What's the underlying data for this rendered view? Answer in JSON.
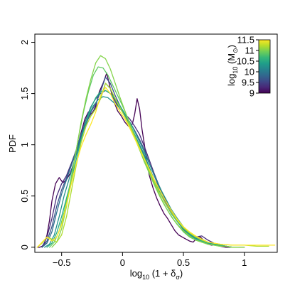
{
  "chart_data": {
    "type": "line",
    "xlabel": {
      "pre": "log",
      "sub": "10",
      "post": " (1 + δ",
      "sub2": "σ",
      "close": ")"
    },
    "ylabel": "PDF",
    "xlim": [
      -0.72,
      1.27
    ],
    "ylim": [
      -0.05,
      2.08
    ],
    "xticks": [
      -0.5,
      0,
      0.5,
      1
    ],
    "xtick_labels": [
      "−0.5",
      "0",
      "0.5",
      "1"
    ],
    "yticks": [
      0,
      0.5,
      1,
      1.5,
      2
    ],
    "ytick_labels": [
      "0",
      "0.5",
      "1",
      "1.5",
      "2"
    ],
    "colorbar": {
      "label": {
        "pre": "log",
        "sub": "10",
        "post": " (M",
        "sub2": "⊙",
        "close": ")"
      },
      "range": [
        9,
        11.5
      ],
      "ticks": [
        9,
        9.5,
        10,
        10.5,
        11,
        11.5
      ],
      "tick_labels": [
        "9",
        "9.5",
        "10",
        "10.5",
        "11",
        "11.5"
      ],
      "colormap": [
        "#440154",
        "#482878",
        "#3e4989",
        "#31688e",
        "#26828e",
        "#1f9e89",
        "#35b779",
        "#6ece58",
        "#b5de2b",
        "#fde725"
      ]
    },
    "series": [
      {
        "mass": 9.0,
        "color": "#440154",
        "x": [
          -0.7,
          -0.68,
          -0.66,
          -0.64,
          -0.62,
          -0.6,
          -0.58,
          -0.55,
          -0.52,
          -0.49,
          -0.46,
          -0.43,
          -0.4,
          -0.37,
          -0.34,
          -0.31,
          -0.28,
          -0.25,
          -0.22,
          -0.19,
          -0.16,
          -0.13,
          -0.1,
          -0.07,
          -0.04,
          -0.01,
          0.02,
          0.05,
          0.08,
          0.1,
          0.12,
          0.14,
          0.16,
          0.18,
          0.2,
          0.22,
          0.25,
          0.28,
          0.31,
          0.34,
          0.37,
          0.4,
          0.43,
          0.46,
          0.49,
          0.52,
          0.55,
          0.58,
          0.61,
          0.64,
          0.67,
          0.7,
          0.73,
          0.76,
          0.8,
          0.85,
          0.9,
          0.95,
          1.0
        ],
        "y": [
          0.0,
          0.0,
          0.01,
          0.04,
          0.12,
          0.26,
          0.45,
          0.62,
          0.68,
          0.63,
          0.66,
          0.72,
          0.82,
          0.98,
          1.12,
          1.25,
          1.32,
          1.3,
          1.38,
          1.52,
          1.6,
          1.7,
          1.55,
          1.42,
          1.33,
          1.28,
          1.22,
          1.18,
          1.2,
          1.3,
          1.45,
          1.35,
          1.15,
          1.0,
          0.82,
          0.7,
          0.58,
          0.48,
          0.4,
          0.33,
          0.28,
          0.22,
          0.16,
          0.12,
          0.1,
          0.08,
          0.06,
          0.05,
          0.09,
          0.1,
          0.06,
          0.03,
          0.02,
          0.02,
          0.01,
          0.0,
          0.0,
          0.0,
          0.0
        ]
      },
      {
        "mass": 9.3,
        "color": "#472d7b",
        "x": [
          -0.66,
          -0.62,
          -0.58,
          -0.54,
          -0.5,
          -0.46,
          -0.42,
          -0.38,
          -0.34,
          -0.3,
          -0.26,
          -0.22,
          -0.18,
          -0.14,
          -0.1,
          -0.06,
          -0.02,
          0.02,
          0.06,
          0.1,
          0.14,
          0.18,
          0.22,
          0.26,
          0.3,
          0.35,
          0.4,
          0.45,
          0.5,
          0.55,
          0.6,
          0.65,
          0.7,
          0.75,
          0.8,
          0.85,
          0.9
        ],
        "y": [
          0.0,
          0.1,
          0.28,
          0.5,
          0.62,
          0.7,
          0.82,
          0.95,
          1.1,
          1.22,
          1.3,
          1.36,
          1.45,
          1.6,
          1.55,
          1.42,
          1.35,
          1.3,
          1.25,
          1.18,
          1.1,
          0.98,
          0.85,
          0.72,
          0.6,
          0.47,
          0.36,
          0.27,
          0.19,
          0.12,
          0.1,
          0.11,
          0.07,
          0.04,
          0.02,
          0.01,
          0.0
        ]
      },
      {
        "mass": 9.6,
        "color": "#3b528b",
        "x": [
          -0.66,
          -0.62,
          -0.58,
          -0.54,
          -0.5,
          -0.46,
          -0.42,
          -0.38,
          -0.34,
          -0.3,
          -0.26,
          -0.22,
          -0.18,
          -0.14,
          -0.1,
          -0.06,
          -0.02,
          0.02,
          0.06,
          0.1,
          0.14,
          0.18,
          0.22,
          0.26,
          0.3,
          0.35,
          0.4,
          0.45,
          0.5,
          0.55,
          0.6,
          0.65,
          0.7,
          0.75,
          0.8,
          0.85,
          0.9
        ],
        "y": [
          0.0,
          0.06,
          0.2,
          0.4,
          0.56,
          0.68,
          0.8,
          0.93,
          1.08,
          1.2,
          1.32,
          1.4,
          1.52,
          1.66,
          1.6,
          1.48,
          1.38,
          1.3,
          1.22,
          1.14,
          1.05,
          0.95,
          0.82,
          0.7,
          0.58,
          0.45,
          0.35,
          0.26,
          0.18,
          0.12,
          0.09,
          0.08,
          0.05,
          0.03,
          0.02,
          0.01,
          0.0
        ]
      },
      {
        "mass": 9.9,
        "color": "#2c728e",
        "x": [
          -0.66,
          -0.62,
          -0.58,
          -0.54,
          -0.5,
          -0.46,
          -0.42,
          -0.38,
          -0.34,
          -0.3,
          -0.26,
          -0.22,
          -0.18,
          -0.14,
          -0.1,
          -0.06,
          -0.02,
          0.02,
          0.06,
          0.1,
          0.14,
          0.18,
          0.22,
          0.26,
          0.3,
          0.35,
          0.4,
          0.45,
          0.5,
          0.55,
          0.6,
          0.65,
          0.7,
          0.75,
          0.8,
          0.85,
          0.9
        ],
        "y": [
          0.0,
          0.04,
          0.15,
          0.34,
          0.52,
          0.66,
          0.8,
          0.95,
          1.1,
          1.25,
          1.37,
          1.45,
          1.5,
          1.53,
          1.5,
          1.44,
          1.36,
          1.28,
          1.2,
          1.1,
          1.0,
          0.9,
          0.78,
          0.66,
          0.55,
          0.43,
          0.33,
          0.25,
          0.17,
          0.11,
          0.08,
          0.06,
          0.04,
          0.03,
          0.02,
          0.01,
          0.0
        ]
      },
      {
        "mass": 10.2,
        "color": "#21918c",
        "x": [
          -0.64,
          -0.6,
          -0.56,
          -0.52,
          -0.48,
          -0.44,
          -0.4,
          -0.36,
          -0.32,
          -0.28,
          -0.24,
          -0.2,
          -0.16,
          -0.12,
          -0.08,
          -0.04,
          0.0,
          0.04,
          0.08,
          0.12,
          0.16,
          0.2,
          0.24,
          0.28,
          0.32,
          0.36,
          0.4,
          0.45,
          0.5,
          0.55,
          0.6,
          0.65,
          0.7,
          0.75,
          0.8,
          0.85,
          0.9
        ],
        "y": [
          0.0,
          0.03,
          0.12,
          0.3,
          0.5,
          0.66,
          0.82,
          0.98,
          1.14,
          1.28,
          1.38,
          1.44,
          1.47,
          1.46,
          1.42,
          1.38,
          1.33,
          1.26,
          1.18,
          1.08,
          0.98,
          0.87,
          0.76,
          0.65,
          0.55,
          0.46,
          0.37,
          0.28,
          0.2,
          0.13,
          0.09,
          0.06,
          0.04,
          0.03,
          0.02,
          0.01,
          0.0
        ]
      },
      {
        "mass": 10.5,
        "color": "#28ae80",
        "x": [
          -0.62,
          -0.58,
          -0.54,
          -0.5,
          -0.46,
          -0.42,
          -0.38,
          -0.34,
          -0.3,
          -0.26,
          -0.22,
          -0.18,
          -0.14,
          -0.1,
          -0.06,
          -0.02,
          0.02,
          0.06,
          0.1,
          0.14,
          0.18,
          0.22,
          0.26,
          0.3,
          0.35,
          0.4,
          0.45,
          0.5,
          0.55,
          0.6,
          0.65,
          0.7,
          0.75,
          0.8,
          0.85,
          0.9,
          0.95
        ],
        "y": [
          0.0,
          0.04,
          0.14,
          0.3,
          0.48,
          0.66,
          0.86,
          1.05,
          1.22,
          1.36,
          1.46,
          1.52,
          1.53,
          1.5,
          1.45,
          1.38,
          1.3,
          1.2,
          1.1,
          0.99,
          0.88,
          0.77,
          0.66,
          0.55,
          0.43,
          0.33,
          0.25,
          0.18,
          0.12,
          0.08,
          0.06,
          0.04,
          0.03,
          0.02,
          0.01,
          0.0,
          0.0
        ]
      },
      {
        "mass": 10.8,
        "color": "#5ec962",
        "x": [
          -0.6,
          -0.56,
          -0.52,
          -0.48,
          -0.44,
          -0.4,
          -0.36,
          -0.32,
          -0.28,
          -0.24,
          -0.2,
          -0.16,
          -0.12,
          -0.08,
          -0.04,
          0.0,
          0.04,
          0.08,
          0.12,
          0.16,
          0.2,
          0.24,
          0.28,
          0.32,
          0.36,
          0.4,
          0.45,
          0.5,
          0.55,
          0.6,
          0.65,
          0.7,
          0.75,
          0.8,
          0.85,
          0.9,
          0.95
        ],
        "y": [
          0.0,
          0.05,
          0.16,
          0.34,
          0.56,
          0.82,
          1.08,
          1.32,
          1.52,
          1.68,
          1.76,
          1.75,
          1.68,
          1.58,
          1.48,
          1.38,
          1.27,
          1.15,
          1.03,
          0.91,
          0.79,
          0.68,
          0.57,
          0.47,
          0.38,
          0.3,
          0.22,
          0.15,
          0.1,
          0.07,
          0.05,
          0.03,
          0.02,
          0.01,
          0.01,
          0.0,
          0.0
        ]
      },
      {
        "mass": 11.0,
        "color": "#84d44b",
        "x": [
          -0.58,
          -0.54,
          -0.5,
          -0.46,
          -0.42,
          -0.38,
          -0.34,
          -0.3,
          -0.26,
          -0.22,
          -0.18,
          -0.14,
          -0.1,
          -0.06,
          -0.02,
          0.02,
          0.06,
          0.1,
          0.14,
          0.18,
          0.22,
          0.26,
          0.3,
          0.34,
          0.38,
          0.42,
          0.46,
          0.5,
          0.55,
          0.6,
          0.65,
          0.7,
          0.75,
          0.8,
          0.85,
          0.9,
          1.0
        ],
        "y": [
          0.0,
          0.05,
          0.18,
          0.4,
          0.66,
          0.95,
          1.22,
          1.45,
          1.64,
          1.8,
          1.87,
          1.84,
          1.74,
          1.6,
          1.46,
          1.33,
          1.2,
          1.07,
          0.95,
          0.83,
          0.72,
          0.61,
          0.51,
          0.42,
          0.34,
          0.27,
          0.21,
          0.16,
          0.11,
          0.07,
          0.05,
          0.03,
          0.02,
          0.01,
          0.01,
          0.0,
          0.0
        ]
      },
      {
        "mass": 11.2,
        "color": "#addc30",
        "x": [
          -0.7,
          -0.66,
          -0.62,
          -0.58,
          -0.54,
          -0.5,
          -0.46,
          -0.42,
          -0.38,
          -0.34,
          -0.3,
          -0.26,
          -0.22,
          -0.18,
          -0.14,
          -0.1,
          -0.06,
          -0.02,
          0.02,
          0.06,
          0.1,
          0.14,
          0.18,
          0.22,
          0.26,
          0.3,
          0.35,
          0.4,
          0.45,
          0.5,
          0.55,
          0.6,
          0.65,
          0.7,
          0.8,
          0.9,
          1.0,
          1.1,
          1.2
        ],
        "y": [
          0.0,
          0.04,
          0.1,
          0.08,
          0.05,
          0.12,
          0.3,
          0.55,
          0.8,
          1.02,
          1.18,
          1.28,
          1.35,
          1.45,
          1.6,
          1.55,
          1.45,
          1.36,
          1.27,
          1.18,
          1.08,
          0.97,
          0.86,
          0.75,
          0.64,
          0.54,
          0.43,
          0.34,
          0.26,
          0.19,
          0.14,
          0.1,
          0.07,
          0.05,
          0.03,
          0.02,
          0.02,
          0.01,
          0.01
        ]
      },
      {
        "mass": 11.5,
        "color": "#fde725",
        "x": [
          -0.7,
          -0.66,
          -0.62,
          -0.58,
          -0.54,
          -0.5,
          -0.46,
          -0.42,
          -0.38,
          -0.34,
          -0.3,
          -0.26,
          -0.22,
          -0.18,
          -0.14,
          -0.1,
          -0.06,
          -0.02,
          0.02,
          0.06,
          0.1,
          0.14,
          0.18,
          0.22,
          0.26,
          0.3,
          0.35,
          0.4,
          0.45,
          0.5,
          0.55,
          0.6,
          0.65,
          0.7,
          0.8,
          0.9,
          1.0,
          1.1,
          1.2,
          1.25
        ],
        "y": [
          0.0,
          0.05,
          0.1,
          0.06,
          0.1,
          0.22,
          0.42,
          0.62,
          0.82,
          0.98,
          1.1,
          1.2,
          1.32,
          1.48,
          1.56,
          1.5,
          1.4,
          1.32,
          1.25,
          1.16,
          1.06,
          0.96,
          0.86,
          0.76,
          0.66,
          0.57,
          0.46,
          0.36,
          0.27,
          0.2,
          0.15,
          0.11,
          0.08,
          0.05,
          0.03,
          0.02,
          0.02,
          0.02,
          0.02,
          0.02
        ]
      }
    ]
  }
}
